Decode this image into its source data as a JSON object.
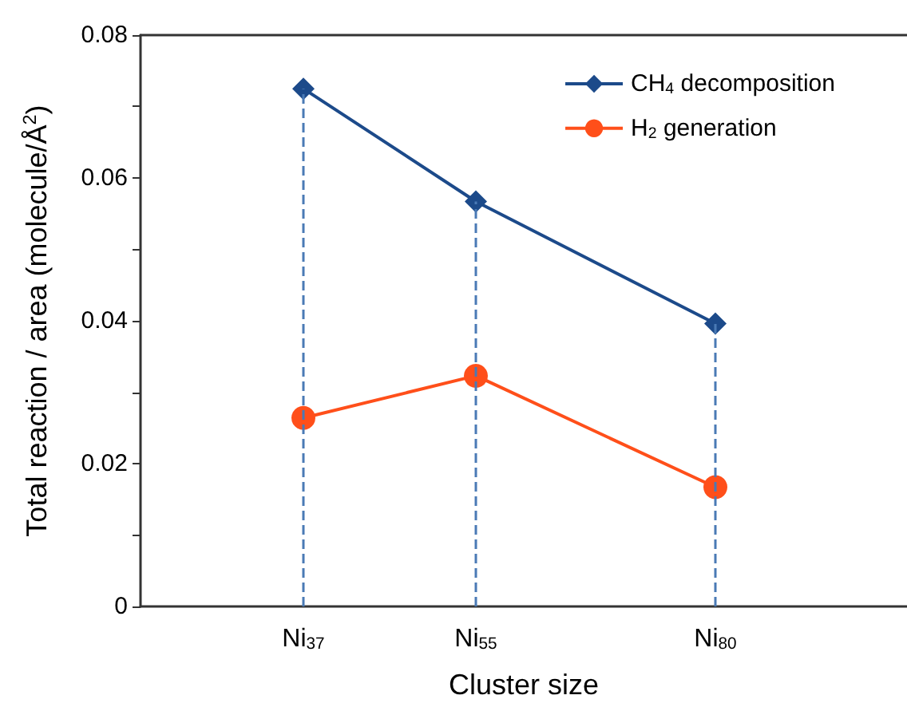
{
  "chart_data": {
    "type": "line",
    "xlabel": "Cluster size",
    "ylabel": "Total reaction / area (molecule/Å$^{2}$)",
    "x": [
      37,
      55,
      80
    ],
    "xlim": [
      20,
      100
    ],
    "xticks": [
      {
        "value": 37,
        "label": "Ni$_{37}$"
      },
      {
        "value": 55,
        "label": "Ni$_{55}$"
      },
      {
        "value": 80,
        "label": "Ni$_{80}$"
      }
    ],
    "ylim": [
      0,
      0.08
    ],
    "yticks": [
      0,
      {
        "value": 0.01,
        "label": null
      },
      0.02,
      {
        "value": 0.03,
        "label": null
      },
      0.04,
      {
        "value": 0.05,
        "label": null
      },
      0.06,
      {
        "value": 0.07,
        "label": null
      },
      0.08
    ],
    "series": [
      {
        "name": "CH$_{4}$ decomposition",
        "color": "#1c4a8a",
        "marker": "diamond",
        "values": [
          0.0725,
          0.0567,
          0.0396
        ]
      },
      {
        "name": "H$_{2}$ generation",
        "color": "#ff4f1a",
        "marker": "circle",
        "values": [
          0.0264,
          0.0323,
          0.0167
        ]
      }
    ],
    "ref_lines": [
      {
        "axis": "x",
        "value": 37,
        "color": "#4a7ab5",
        "line_style": "dashed"
      },
      {
        "axis": "x",
        "value": 55,
        "color": "#4a7ab5",
        "line_style": "dashed"
      },
      {
        "axis": "x",
        "value": 80,
        "color": "#4a7ab5",
        "line_style": "dashed"
      }
    ],
    "legend": "top right",
    "grid": false
  }
}
